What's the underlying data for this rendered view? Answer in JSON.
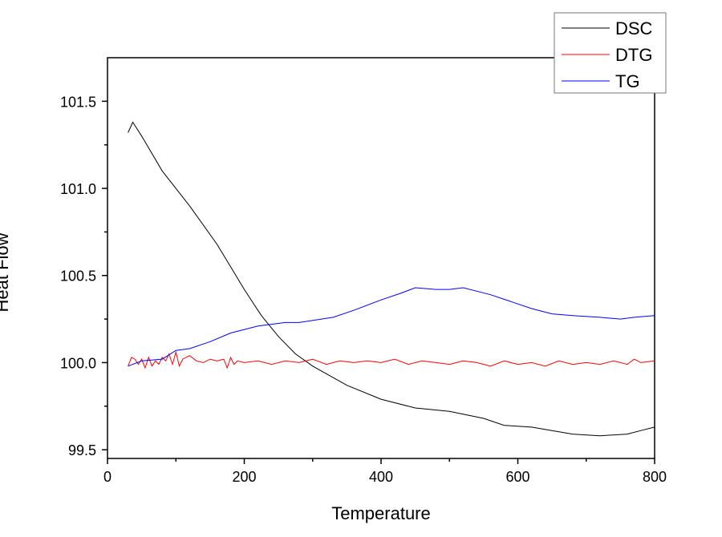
{
  "chart_data": {
    "type": "line",
    "title": "",
    "xlabel": "Temperature",
    "ylabel": "Heat Flow",
    "xlim": [
      0,
      800
    ],
    "ylim": [
      99.45,
      101.75
    ],
    "xticks": [
      0,
      200,
      400,
      600,
      800
    ],
    "xtick_labels": [
      "0",
      "200",
      "400",
      "600",
      "800"
    ],
    "yticks": [
      99.5,
      100.0,
      100.5,
      101.0,
      101.5
    ],
    "ytick_labels": [
      "99.5",
      "100.0",
      "100.5",
      "101.0",
      "101.5"
    ],
    "grid": false,
    "legend_position": "top-right",
    "series": [
      {
        "name": "DSC",
        "color": "#000000",
        "x": [
          30,
          37,
          50,
          80,
          120,
          160,
          180,
          200,
          225,
          250,
          275,
          300,
          350,
          400,
          450,
          500,
          550,
          580,
          620,
          650,
          680,
          720,
          760,
          780,
          800
        ],
        "y": [
          101.32,
          101.38,
          101.3,
          101.1,
          100.9,
          100.68,
          100.55,
          100.42,
          100.27,
          100.15,
          100.05,
          99.98,
          99.87,
          99.79,
          99.74,
          99.72,
          99.68,
          99.64,
          99.63,
          99.61,
          99.59,
          99.58,
          99.59,
          99.61,
          99.63
        ]
      },
      {
        "name": "DTG",
        "color": "#ff0000",
        "x": [
          30,
          35,
          40,
          45,
          50,
          55,
          60,
          65,
          70,
          75,
          80,
          85,
          90,
          95,
          100,
          105,
          110,
          120,
          130,
          140,
          150,
          160,
          170,
          175,
          180,
          185,
          190,
          200,
          220,
          240,
          260,
          280,
          300,
          320,
          340,
          360,
          380,
          400,
          420,
          440,
          460,
          480,
          500,
          520,
          540,
          560,
          580,
          600,
          620,
          640,
          660,
          680,
          700,
          720,
          740,
          760,
          770,
          780,
          800
        ],
        "y": [
          99.98,
          100.03,
          100.02,
          99.99,
          100.02,
          99.97,
          100.03,
          99.98,
          100.01,
          99.99,
          100.03,
          100.01,
          100.05,
          99.99,
          100.06,
          99.98,
          100.02,
          100.04,
          100.01,
          100.0,
          100.02,
          100.01,
          100.02,
          99.97,
          100.03,
          99.99,
          100.01,
          100.0,
          100.01,
          99.99,
          100.01,
          100.0,
          100.02,
          99.99,
          100.01,
          100.0,
          100.01,
          100.0,
          100.02,
          99.99,
          100.01,
          100.0,
          99.99,
          100.01,
          100.0,
          99.98,
          100.01,
          99.99,
          100.0,
          99.98,
          100.01,
          99.99,
          100.0,
          99.99,
          100.01,
          99.99,
          100.02,
          100.0,
          100.01
        ]
      },
      {
        "name": "TG",
        "color": "#0000ff",
        "x": [
          30,
          50,
          80,
          100,
          120,
          150,
          180,
          220,
          260,
          280,
          330,
          360,
          400,
          430,
          450,
          480,
          500,
          520,
          540,
          560,
          590,
          620,
          650,
          680,
          720,
          750,
          770,
          800
        ],
        "y": [
          99.98,
          100.01,
          100.02,
          100.07,
          100.08,
          100.12,
          100.17,
          100.21,
          100.23,
          100.23,
          100.26,
          100.3,
          100.36,
          100.4,
          100.43,
          100.42,
          100.42,
          100.43,
          100.41,
          100.39,
          100.35,
          100.31,
          100.28,
          100.27,
          100.26,
          100.25,
          100.26,
          100.27
        ]
      }
    ]
  }
}
